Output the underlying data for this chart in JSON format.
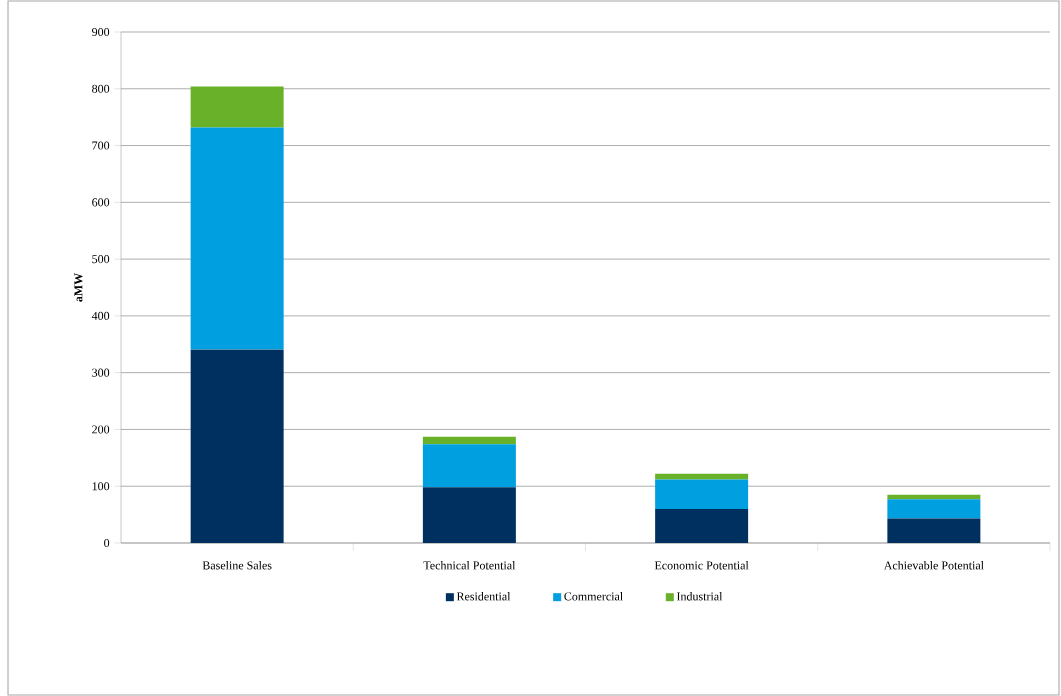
{
  "chart_data": {
    "type": "bar",
    "stacked": true,
    "ylabel": "aMW",
    "categories": [
      "Baseline Sales",
      "Technical Potential",
      "Economic Potential",
      "Achievable Potential"
    ],
    "series": [
      {
        "name": "Residential",
        "color": "#003060",
        "values": [
          341,
          98,
          60,
          43
        ]
      },
      {
        "name": "Commercial",
        "color": "#009fe0",
        "values": [
          391,
          76,
          52,
          34
        ]
      },
      {
        "name": "Industrial",
        "color": "#6ab12a",
        "values": [
          72,
          13,
          10,
          8
        ]
      }
    ],
    "ylim": [
      0,
      900
    ],
    "yticks": [
      0,
      100,
      200,
      300,
      400,
      500,
      600,
      700,
      800,
      900
    ],
    "grid": "y",
    "legend": "bottom"
  }
}
